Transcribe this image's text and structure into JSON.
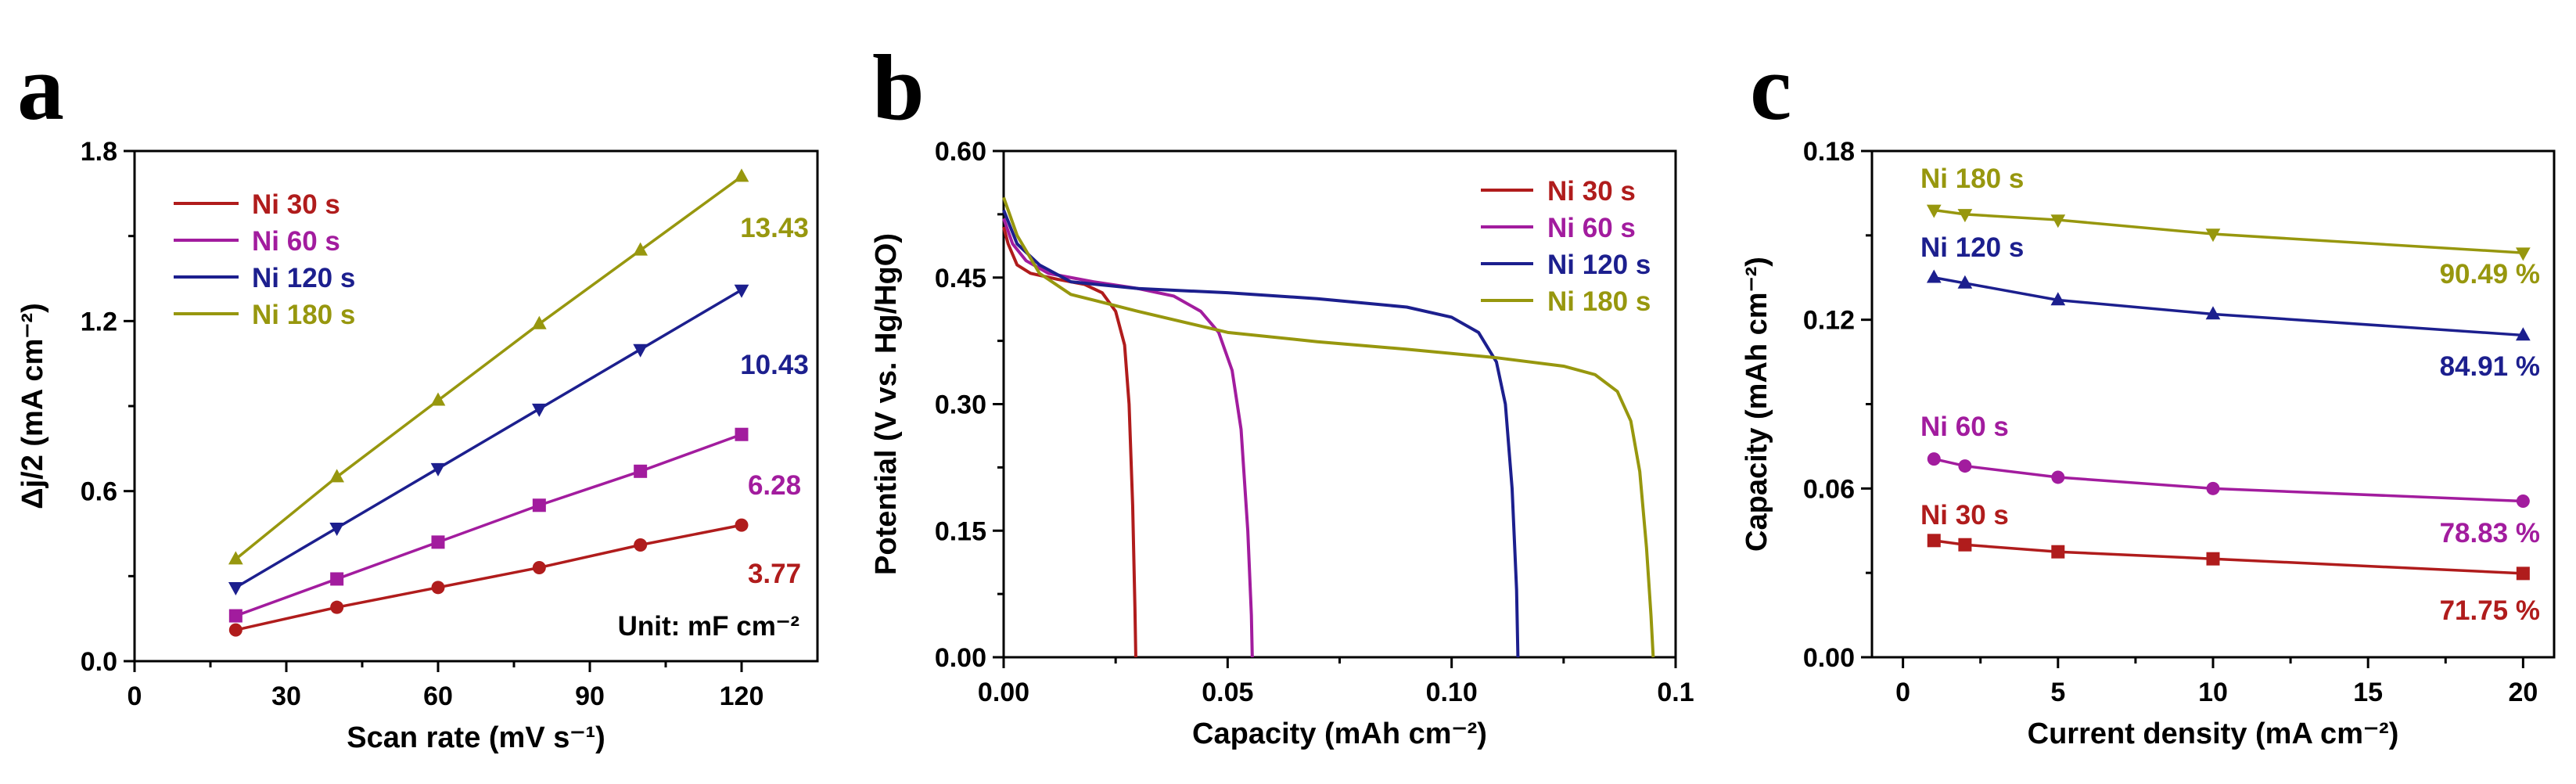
{
  "colors": {
    "ni30": "#B01C1C",
    "ni60": "#A21C9E",
    "ni120": "#1C1F8E",
    "ni180": "#97970E"
  },
  "chart_data": [
    {
      "panel": "a",
      "type": "line",
      "xlabel": "Scan rate (mV s⁻¹)",
      "ylabel": "Δj/2 (mA cm⁻²)",
      "xlim": [
        0,
        135
      ],
      "ylim": [
        0,
        1.8
      ],
      "xticks": [
        "0",
        "30",
        "60",
        "90",
        "120"
      ],
      "yticks": [
        "0.0",
        "0.6",
        "1.2",
        "1.8"
      ],
      "x": [
        20,
        40,
        60,
        80,
        100,
        120
      ],
      "legend_position": "top-left",
      "unit_note": "Unit: mF cm⁻²",
      "series": [
        {
          "name": "Ni 30 s",
          "values": [
            0.11,
            0.19,
            0.26,
            0.33,
            0.41,
            0.48
          ],
          "marker": "circle",
          "annotation": "3.77"
        },
        {
          "name": "Ni 60 s",
          "values": [
            0.16,
            0.29,
            0.42,
            0.55,
            0.67,
            0.8
          ],
          "marker": "square",
          "annotation": "6.28"
        },
        {
          "name": "Ni 120 s",
          "values": [
            0.26,
            0.47,
            0.68,
            0.89,
            1.1,
            1.31
          ],
          "marker": "triangle-down",
          "annotation": "10.43"
        },
        {
          "name": "Ni 180 s",
          "values": [
            0.36,
            0.65,
            0.92,
            1.19,
            1.45,
            1.71
          ],
          "marker": "triangle-up",
          "annotation": "13.43"
        }
      ]
    },
    {
      "panel": "b",
      "type": "line",
      "xlabel": "Capacity (mAh cm⁻²)",
      "ylabel": "Potential (V vs. Hg/HgO)",
      "xlim": [
        0,
        0.15
      ],
      "ylim": [
        0,
        0.6
      ],
      "xticks": [
        "0.00",
        "0.05",
        "0.10",
        "0.1"
      ],
      "yticks": [
        "0.00",
        "0.15",
        "0.30",
        "0.45",
        "0.60"
      ],
      "legend_position": "top-right",
      "series": [
        {
          "name": "Ni 30 s",
          "points": [
            [
              0,
              0.51
            ],
            [
              0.001,
              0.49
            ],
            [
              0.003,
              0.465
            ],
            [
              0.006,
              0.455
            ],
            [
              0.012,
              0.448
            ],
            [
              0.018,
              0.442
            ],
            [
              0.022,
              0.432
            ],
            [
              0.025,
              0.41
            ],
            [
              0.027,
              0.37
            ],
            [
              0.028,
              0.3
            ],
            [
              0.0288,
              0.18
            ],
            [
              0.0293,
              0.06
            ],
            [
              0.0295,
              0.0
            ]
          ]
        },
        {
          "name": "Ni 60 s",
          "points": [
            [
              0,
              0.52
            ],
            [
              0.002,
              0.49
            ],
            [
              0.005,
              0.47
            ],
            [
              0.01,
              0.455
            ],
            [
              0.02,
              0.445
            ],
            [
              0.03,
              0.437
            ],
            [
              0.038,
              0.428
            ],
            [
              0.044,
              0.41
            ],
            [
              0.048,
              0.385
            ],
            [
              0.051,
              0.34
            ],
            [
              0.053,
              0.27
            ],
            [
              0.0545,
              0.15
            ],
            [
              0.0553,
              0.05
            ],
            [
              0.0555,
              0.0
            ]
          ]
        },
        {
          "name": "Ni 120 s",
          "points": [
            [
              0,
              0.53
            ],
            [
              0.003,
              0.49
            ],
            [
              0.008,
              0.465
            ],
            [
              0.015,
              0.445
            ],
            [
              0.03,
              0.437
            ],
            [
              0.05,
              0.432
            ],
            [
              0.07,
              0.425
            ],
            [
              0.09,
              0.415
            ],
            [
              0.1,
              0.403
            ],
            [
              0.106,
              0.385
            ],
            [
              0.11,
              0.35
            ],
            [
              0.112,
              0.3
            ],
            [
              0.1135,
              0.2
            ],
            [
              0.1145,
              0.08
            ],
            [
              0.1148,
              0.0
            ]
          ]
        },
        {
          "name": "Ni 180 s",
          "points": [
            [
              0,
              0.545
            ],
            [
              0.003,
              0.5
            ],
            [
              0.008,
              0.455
            ],
            [
              0.015,
              0.43
            ],
            [
              0.03,
              0.41
            ],
            [
              0.05,
              0.385
            ],
            [
              0.07,
              0.374
            ],
            [
              0.09,
              0.365
            ],
            [
              0.11,
              0.355
            ],
            [
              0.125,
              0.345
            ],
            [
              0.132,
              0.335
            ],
            [
              0.137,
              0.315
            ],
            [
              0.14,
              0.28
            ],
            [
              0.142,
              0.22
            ],
            [
              0.1435,
              0.13
            ],
            [
              0.1445,
              0.05
            ],
            [
              0.145,
              0.0
            ]
          ]
        }
      ]
    },
    {
      "panel": "c",
      "type": "line",
      "xlabel": "Current density (mA cm⁻²)",
      "ylabel": "Capacity (mAh cm⁻²)",
      "xlim": [
        -1,
        21
      ],
      "ylim": [
        0,
        0.18
      ],
      "xticks": [
        "0",
        "5",
        "10",
        "15",
        "20"
      ],
      "yticks": [
        "0.00",
        "0.06",
        "0.12",
        "0.18"
      ],
      "x": [
        1,
        2,
        5,
        10,
        20
      ],
      "series": [
        {
          "name": "Ni 30 s",
          "values": [
            0.0415,
            0.04,
            0.0375,
            0.035,
            0.0298
          ],
          "marker": "square",
          "annotation": "71.75 %"
        },
        {
          "name": "Ni 60 s",
          "values": [
            0.0705,
            0.068,
            0.064,
            0.06,
            0.0555
          ],
          "marker": "circle",
          "annotation": "78.83 %"
        },
        {
          "name": "Ni 120 s",
          "values": [
            0.135,
            0.133,
            0.127,
            0.122,
            0.1145
          ],
          "marker": "triangle-up",
          "annotation": "84.91 %"
        },
        {
          "name": "Ni 180 s",
          "values": [
            0.159,
            0.1575,
            0.1555,
            0.1505,
            0.1438
          ],
          "marker": "triangle-down",
          "annotation": "90.49 %"
        }
      ]
    }
  ]
}
